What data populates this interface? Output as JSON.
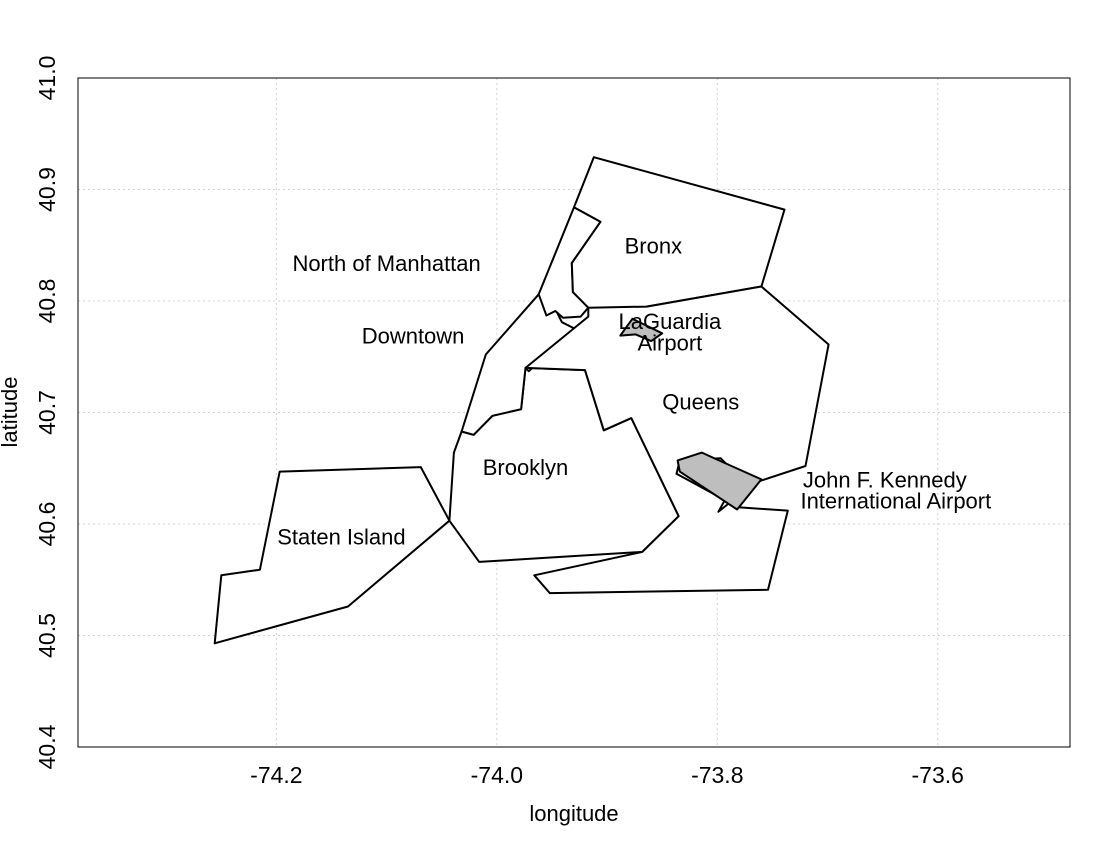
{
  "chart_data": {
    "type": "map",
    "xlabel": "longitude",
    "ylabel": "latitude",
    "xlim": [
      -74.38,
      -73.48
    ],
    "ylim": [
      40.4,
      41.0
    ],
    "xticks": [
      -74.2,
      -74.0,
      -73.8,
      -73.6
    ],
    "xtick_labels": [
      "-74.2",
      "-74.0",
      "-73.8",
      "-73.6"
    ],
    "yticks": [
      40.4,
      40.5,
      40.6,
      40.7,
      40.8,
      40.9,
      41.0
    ],
    "ytick_labels": [
      "40.4",
      "40.5",
      "40.6",
      "40.7",
      "40.8",
      "40.9",
      "41.0"
    ],
    "grid": true,
    "regions": [
      {
        "key": "staten-island",
        "fill": "#ffffff",
        "coords": [
          [
            -74.256,
            40.493
          ],
          [
            -74.25,
            40.554
          ],
          [
            -74.215,
            40.559
          ],
          [
            -74.197,
            40.647
          ],
          [
            -74.069,
            40.651
          ],
          [
            -74.043,
            40.603
          ],
          [
            -74.135,
            40.526
          ]
        ]
      },
      {
        "key": "brooklyn",
        "fill": "#ffffff",
        "coords": [
          [
            -74.043,
            40.603
          ],
          [
            -74.039,
            40.664
          ],
          [
            -74.032,
            40.683
          ],
          [
            -74.021,
            40.68
          ],
          [
            -74.004,
            40.697
          ],
          [
            -73.978,
            40.703
          ],
          [
            -73.974,
            40.74
          ],
          [
            -73.92,
            40.738
          ],
          [
            -73.903,
            40.684
          ],
          [
            -73.878,
            40.695
          ],
          [
            -73.835,
            40.607
          ],
          [
            -73.868,
            40.575
          ],
          [
            -74.016,
            40.566
          ]
        ]
      },
      {
        "key": "downtown",
        "fill": "#ffffff",
        "coords": [
          [
            -74.032,
            40.683
          ],
          [
            -74.01,
            40.752
          ],
          [
            -73.962,
            40.806
          ],
          [
            -73.946,
            40.791
          ],
          [
            -73.941,
            40.781
          ],
          [
            -73.925,
            40.773
          ],
          [
            -73.917,
            40.786
          ],
          [
            -73.971,
            40.737
          ],
          [
            -73.974,
            40.74
          ],
          [
            -73.978,
            40.703
          ],
          [
            -74.004,
            40.697
          ],
          [
            -74.021,
            40.68
          ]
        ]
      },
      {
        "key": "north-of-manhattan",
        "fill": "#ffffff",
        "coords": [
          [
            -73.962,
            40.806
          ],
          [
            -73.93,
            40.884
          ],
          [
            -73.906,
            40.871
          ],
          [
            -73.932,
            40.834
          ],
          [
            -73.931,
            40.808
          ],
          [
            -73.917,
            40.794
          ],
          [
            -73.924,
            40.786
          ],
          [
            -73.94,
            40.785
          ],
          [
            -73.947,
            40.791
          ],
          [
            -73.955,
            40.787
          ]
        ]
      },
      {
        "key": "bronx",
        "fill": "#ffffff",
        "coords": [
          [
            -73.93,
            40.884
          ],
          [
            -73.912,
            40.929
          ],
          [
            -73.739,
            40.882
          ],
          [
            -73.76,
            40.813
          ],
          [
            -73.864,
            40.795
          ],
          [
            -73.869,
            40.785
          ],
          [
            -73.917,
            40.794
          ],
          [
            -73.931,
            40.808
          ],
          [
            -73.932,
            40.834
          ],
          [
            -73.906,
            40.871
          ]
        ]
      },
      {
        "key": "queens",
        "fill": "#ffffff",
        "coords": [
          [
            -73.974,
            40.74
          ],
          [
            -73.917,
            40.786
          ],
          [
            -73.917,
            40.794
          ],
          [
            -73.864,
            40.795
          ],
          [
            -73.76,
            40.813
          ],
          [
            -73.699,
            40.761
          ],
          [
            -73.72,
            40.652
          ],
          [
            -73.766,
            40.637
          ],
          [
            -73.799,
            40.611
          ],
          [
            -73.781,
            40.643
          ],
          [
            -73.797,
            40.659
          ],
          [
            -73.834,
            40.657
          ],
          [
            -73.837,
            40.645
          ],
          [
            -73.781,
            40.615
          ],
          [
            -73.736,
            40.612
          ],
          [
            -73.754,
            40.541
          ],
          [
            -73.952,
            40.538
          ],
          [
            -73.966,
            40.554
          ],
          [
            -73.868,
            40.575
          ],
          [
            -73.835,
            40.607
          ],
          [
            -73.878,
            40.695
          ],
          [
            -73.903,
            40.684
          ],
          [
            -73.92,
            40.738
          ]
        ]
      },
      {
        "key": "laguardia-airport",
        "fill": "#bebebe",
        "coords": [
          [
            -73.877,
            40.784
          ],
          [
            -73.85,
            40.771
          ],
          [
            -73.86,
            40.764
          ],
          [
            -73.874,
            40.77
          ],
          [
            -73.888,
            40.769
          ]
        ]
      },
      {
        "key": "jfk-airport",
        "fill": "#bebebe",
        "coords": [
          [
            -73.836,
            40.657
          ],
          [
            -73.814,
            40.664
          ],
          [
            -73.796,
            40.656
          ],
          [
            -73.76,
            40.64
          ],
          [
            -73.782,
            40.613
          ],
          [
            -73.834,
            40.647
          ]
        ]
      }
    ],
    "labels": [
      {
        "key": "north-of-manhattan",
        "text": "North of Manhattan",
        "lon": -74.1,
        "lat": 40.832
      },
      {
        "key": "bronx",
        "text": "Bronx",
        "lon": -73.858,
        "lat": 40.848
      },
      {
        "key": "downtown",
        "text": "Downtown",
        "lon": -74.076,
        "lat": 40.767
      },
      {
        "key": "laguardia-line1",
        "text": "LaGuardia",
        "lon": -73.843,
        "lat": 40.78
      },
      {
        "key": "laguardia-line2",
        "text": "Airport",
        "lon": -73.843,
        "lat": 40.761
      },
      {
        "key": "queens",
        "text": "Queens",
        "lon": -73.815,
        "lat": 40.708
      },
      {
        "key": "brooklyn",
        "text": "Brooklyn",
        "lon": -73.974,
        "lat": 40.649
      },
      {
        "key": "jfk-line1",
        "text": "John F. Kennedy",
        "lon": -73.648,
        "lat": 40.638
      },
      {
        "key": "jfk-line2",
        "text": "International Airport",
        "lon": -73.638,
        "lat": 40.619
      },
      {
        "key": "staten-island",
        "text": "Staten Island",
        "lon": -74.141,
        "lat": 40.587
      }
    ]
  }
}
